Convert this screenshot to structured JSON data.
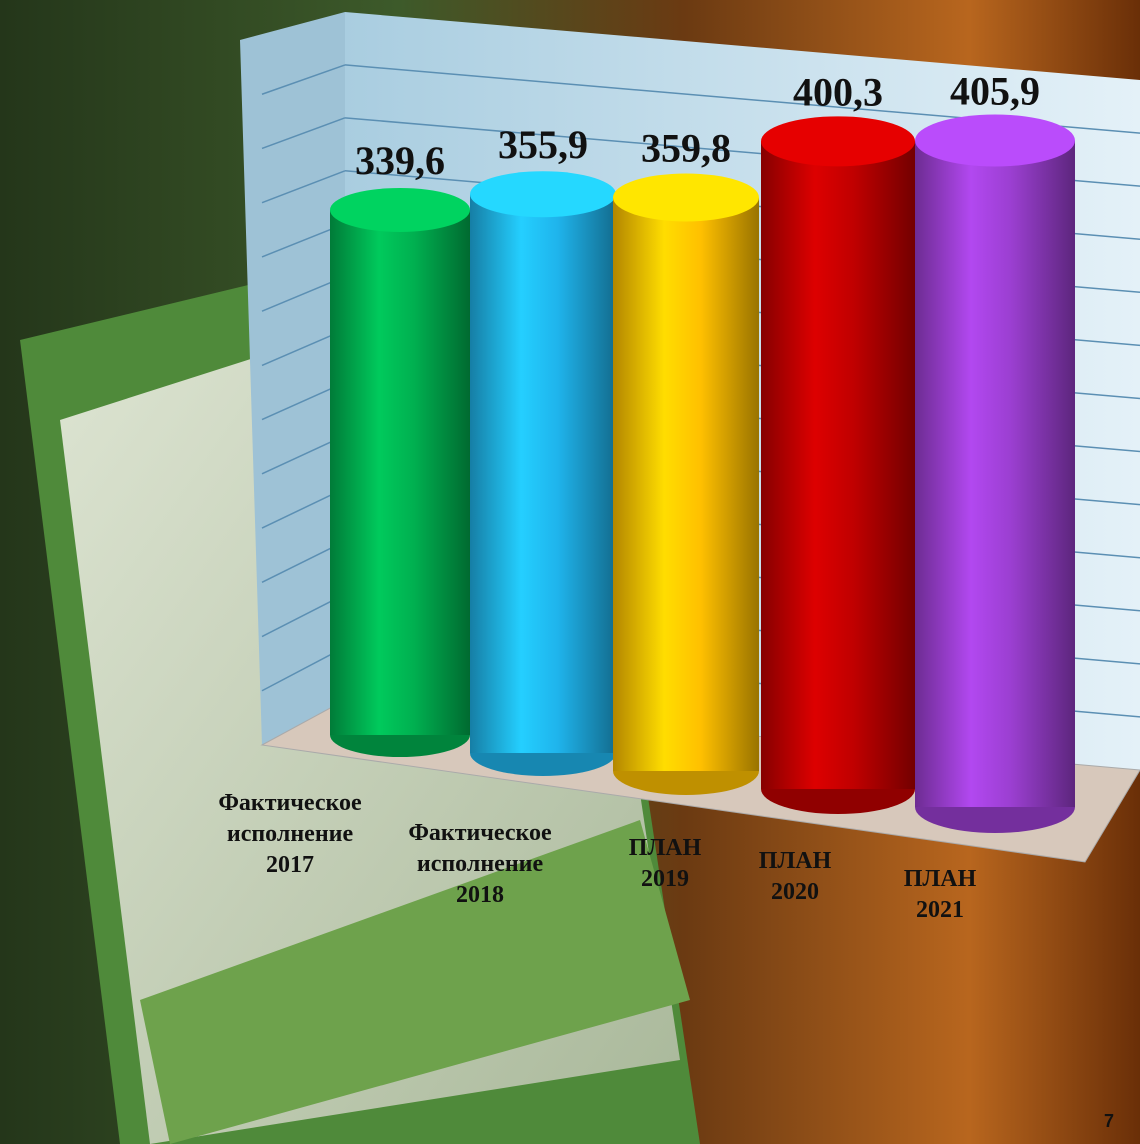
{
  "chart_data": {
    "type": "bar",
    "categories": [
      "Фактическое\nисполнение\n2017",
      "Фактическое\nисполнение\n2018",
      "ПЛАН\n2019",
      "ПЛАН\n2020",
      "ПЛАН\n2021"
    ],
    "values": [
      339.6,
      355.9,
      359.8,
      400.3,
      405.9
    ],
    "value_labels": [
      "339,6",
      "355,9",
      "359,8",
      "400,3",
      "405,9"
    ],
    "colors": [
      "#00b050",
      "#1fb4ec",
      "#ffc000",
      "#c00000",
      "#9b3fd1"
    ],
    "ylim": [
      0,
      450
    ],
    "grid": true
  },
  "page_number": "7"
}
